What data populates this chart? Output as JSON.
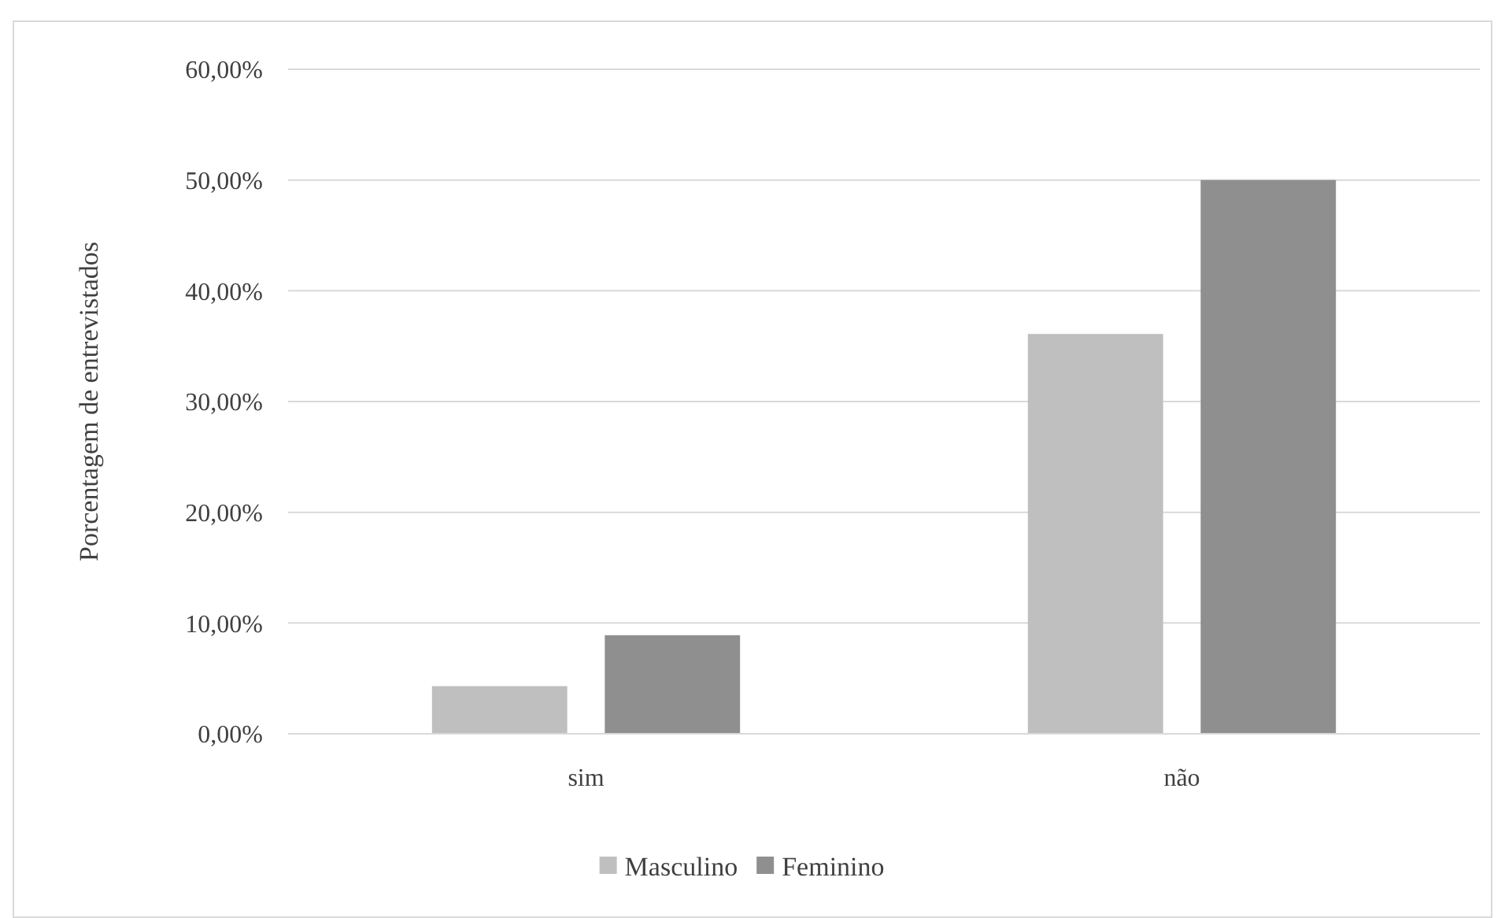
{
  "chart_data": {
    "type": "bar",
    "ylabel": "Porcentagem de entrevistados",
    "categories": [
      "sim",
      "não"
    ],
    "series": [
      {
        "name": "Masculino",
        "color": "#bfbfbf",
        "values": [
          4.3,
          36.1
        ]
      },
      {
        "name": "Feminino",
        "color": "#8f8f8f",
        "values": [
          8.9,
          50
        ]
      }
    ],
    "ylim": [
      0,
      60
    ],
    "yticks": [
      {
        "value": 0,
        "label": "0,00%"
      },
      {
        "value": 10,
        "label": "10,00%"
      },
      {
        "value": 20,
        "label": "20,00%"
      },
      {
        "value": 30,
        "label": "30,00%"
      },
      {
        "value": 40,
        "label": "40,00%"
      },
      {
        "value": 50,
        "label": "50,00%"
      },
      {
        "value": 60,
        "label": "60,00%"
      }
    ],
    "grid": "y",
    "legend": "bottom"
  }
}
